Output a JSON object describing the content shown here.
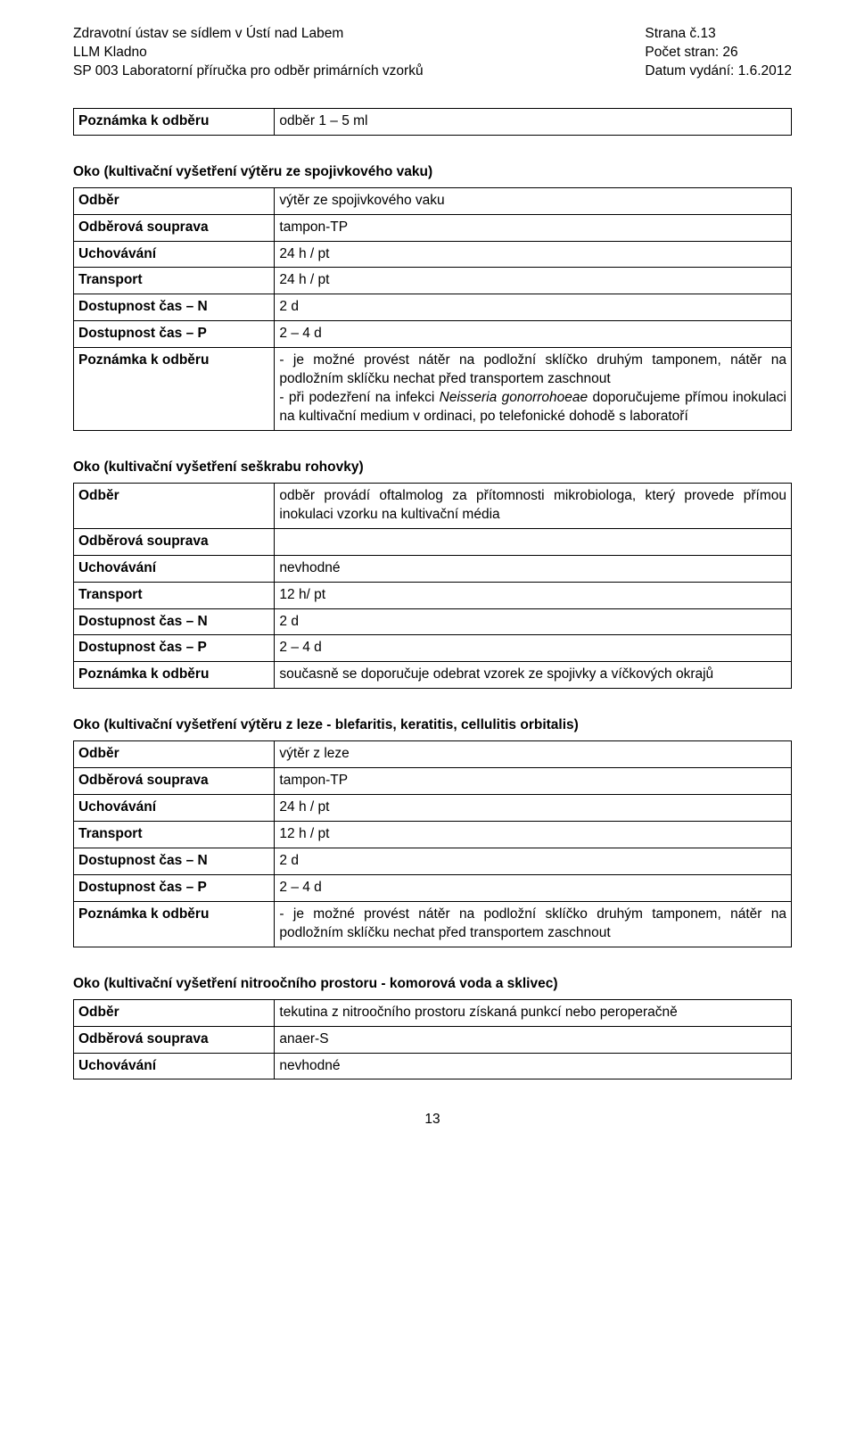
{
  "header": {
    "left1": "Zdravotní ústav se sídlem v Ústí nad Labem",
    "left2": "LLM Kladno",
    "left3": "SP 003 Laboratorní příručka pro odběr primárních vzorků",
    "right1": "Strana č.13",
    "right2": "Počet stran: 26",
    "right3": "Datum vydání: 1.6.2012"
  },
  "labels": {
    "note": "Poznámka k odběru",
    "odber": "Odběr",
    "souprava": "Odběrová souprava",
    "uchov": "Uchovávání",
    "transport": "Transport",
    "dostN": "Dostupnost čas – N",
    "dostP": "Dostupnost čas – P"
  },
  "topnote": "odběr  1 – 5 ml",
  "section1": {
    "title": "Oko (kultivační vyšetření výtěru ze spojivkového vaku)",
    "odber": "výtěr ze spojivkového vaku",
    "souprava": "tampon-TP",
    "uchov": "24 h / pt",
    "transport": "24 h / pt",
    "dostN": "2 d",
    "dostP": "2 – 4 d",
    "note": "- je možné provést nátěr na podložní sklíčko druhým tamponem, nátěr na podložním sklíčku nechat před transportem zaschnout\n- při podezření na infekci Neisseria gonorrohoeae doporučujeme přímou inokulaci na kultivační medium v ordinaci, po telefonické dohodě s laboratoří"
  },
  "section2": {
    "title": "Oko (kultivační vyšetření seškrabu rohovky)",
    "odber": "odběr provádí oftalmolog za přítomnosti mikrobiologa, který provede přímou inokulaci vzorku na kultivační média",
    "souprava": "",
    "uchov": "nevhodné",
    "transport": "12 h/ pt",
    "dostN": "2 d",
    "dostP": "2 – 4 d",
    "note": "současně se doporučuje odebrat vzorek ze spojivky a víčkových okrajů"
  },
  "section3": {
    "title": "Oko (kultivační vyšetření výtěru z leze - blefaritis, keratitis, cellulitis orbitalis)",
    "odber": "výtěr z leze",
    "souprava": "tampon-TP",
    "uchov": "24 h / pt",
    "transport": "12 h / pt",
    "dostN": "2 d",
    "dostP": "2 – 4 d",
    "note": "- je možné provést nátěr na podložní sklíčko druhým tamponem, nátěr na podložním sklíčku nechat před transportem zaschnout"
  },
  "section4": {
    "title": "Oko (kultivační vyšetření nitroočního prostoru - komorová voda a sklivec)",
    "odber": "tekutina z nitroočního prostoru získaná punkcí nebo peroperačně",
    "souprava": "anaer-S",
    "uchov": "nevhodné"
  },
  "pageNumber": "13"
}
